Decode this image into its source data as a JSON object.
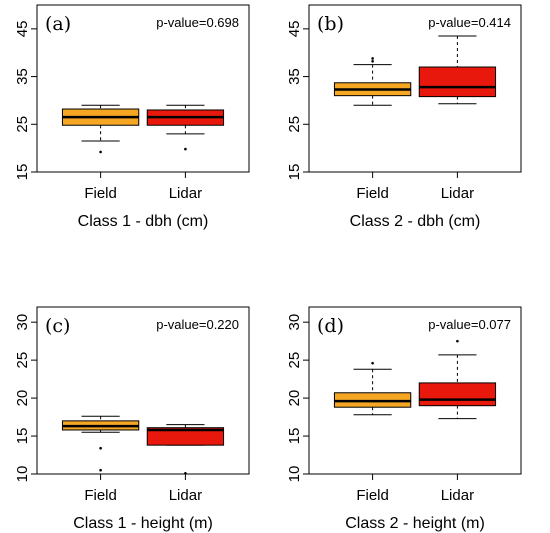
{
  "chart_data": [
    {
      "type": "box",
      "panel_label": "(a)",
      "annotation": "p-value=0.698",
      "xlabel": "Class 1 - dbh (cm)",
      "categories": [
        "Field",
        "Lidar"
      ],
      "y_ticks": [
        "15",
        "25",
        "35",
        "45"
      ],
      "ylim": [
        15,
        50
      ],
      "boxes": [
        {
          "category": "Field",
          "whisker_low": 21.5,
          "q1": 24.8,
          "median": 26.5,
          "q3": 28.2,
          "whisker_high": 29,
          "outliers": [
            19.2
          ],
          "color": "#f5a623"
        },
        {
          "category": "Lidar",
          "whisker_low": 23,
          "q1": 24.8,
          "median": 26.5,
          "q3": 28,
          "whisker_high": 29,
          "outliers": [
            19.8
          ],
          "color": "#e8190c"
        }
      ]
    },
    {
      "type": "box",
      "panel_label": "(b)",
      "annotation": "p-value=0.414",
      "xlabel": "Class 2 - dbh (cm)",
      "categories": [
        "Field",
        "Lidar"
      ],
      "y_ticks": [
        "15",
        "25",
        "35",
        "45"
      ],
      "ylim": [
        15,
        50
      ],
      "boxes": [
        {
          "category": "Field",
          "whisker_low": 29,
          "q1": 31,
          "median": 32.3,
          "q3": 33.7,
          "whisker_high": 37.5,
          "outliers": [
            38.2,
            38.8
          ],
          "color": "#f5a623"
        },
        {
          "category": "Lidar",
          "whisker_low": 29.3,
          "q1": 30.8,
          "median": 32.8,
          "q3": 37,
          "whisker_high": 43.5,
          "outliers": [],
          "color": "#e8190c"
        }
      ]
    },
    {
      "type": "box",
      "panel_label": "(c)",
      "annotation": "p-value=0.220",
      "xlabel": "Class 1 - height (m)",
      "categories": [
        "Field",
        "Lidar"
      ],
      "y_ticks": [
        "10",
        "15",
        "20",
        "25",
        "30"
      ],
      "ylim": [
        10,
        32
      ],
      "boxes": [
        {
          "category": "Field",
          "whisker_low": 15.5,
          "q1": 15.8,
          "median": 16.3,
          "q3": 17,
          "whisker_high": 17.6,
          "outliers": [
            13.4,
            10.5
          ],
          "color": "#f5a623"
        },
        {
          "category": "Lidar",
          "whisker_low": 13.8,
          "q1": 13.8,
          "median": 15.8,
          "q3": 16.1,
          "whisker_high": 16.5,
          "outliers": [
            10.1
          ],
          "color": "#e8190c"
        }
      ]
    },
    {
      "type": "box",
      "panel_label": "(d)",
      "annotation": "p-value=0.077",
      "xlabel": "Class 2 - height (m)",
      "categories": [
        "Field",
        "Lidar"
      ],
      "y_ticks": [
        "10",
        "15",
        "20",
        "25",
        "30"
      ],
      "ylim": [
        10,
        32
      ],
      "boxes": [
        {
          "category": "Field",
          "whisker_low": 17.8,
          "q1": 18.8,
          "median": 19.6,
          "q3": 20.7,
          "whisker_high": 23.8,
          "outliers": [
            24.6
          ],
          "color": "#f5a623"
        },
        {
          "category": "Lidar",
          "whisker_low": 17.3,
          "q1": 19,
          "median": 19.8,
          "q3": 22,
          "whisker_high": 25.7,
          "outliers": [
            27.5
          ],
          "color": "#e8190c"
        }
      ]
    }
  ]
}
